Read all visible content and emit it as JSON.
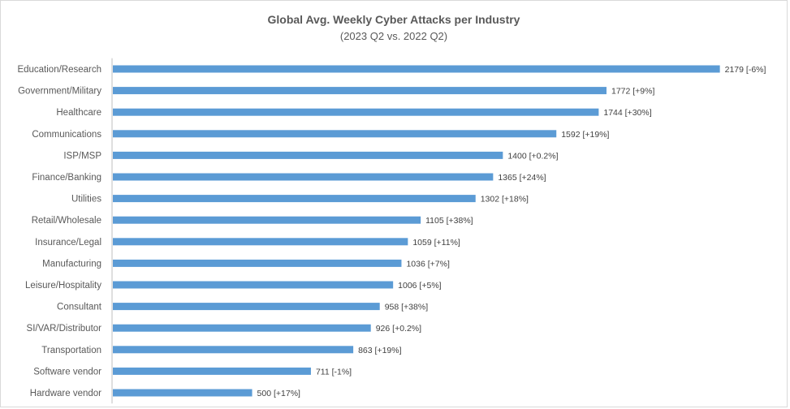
{
  "chart_data": {
    "type": "bar",
    "orientation": "horizontal",
    "title": "Global Avg. Weekly Cyber Attacks per Industry",
    "subtitle": "(2023 Q2 vs. 2022 Q2)",
    "xlabel": "",
    "ylabel": "",
    "grid": false,
    "legend": "none",
    "bar_color": "#5b9bd5",
    "xlim": [
      0,
      2250
    ],
    "categories": [
      "Education/Research",
      "Government/Military",
      "Healthcare",
      "Communications",
      "ISP/MSP",
      "Finance/Banking",
      "Utilities",
      "Retail/Wholesale",
      "Insurance/Legal",
      "Manufacturing",
      "Leisure/Hospitality",
      "Consultant",
      "SI/VAR/Distributor",
      "Transportation",
      "Software vendor",
      "Hardware vendor"
    ],
    "values": [
      2179,
      1772,
      1744,
      1592,
      1400,
      1365,
      1302,
      1105,
      1059,
      1036,
      1006,
      958,
      926,
      863,
      711,
      500
    ],
    "changes": [
      "[-6%]",
      "[+9%]",
      "[+30%]",
      "[+19%]",
      "[+0.2%]",
      "[+24%]",
      "[+18%]",
      "[+38%]",
      "[+11%]",
      "[+7%]",
      "[+5%]",
      "[+38%]",
      "[+0.2%]",
      "[+19%]",
      "[-1%]",
      "[+17%]"
    ]
  }
}
